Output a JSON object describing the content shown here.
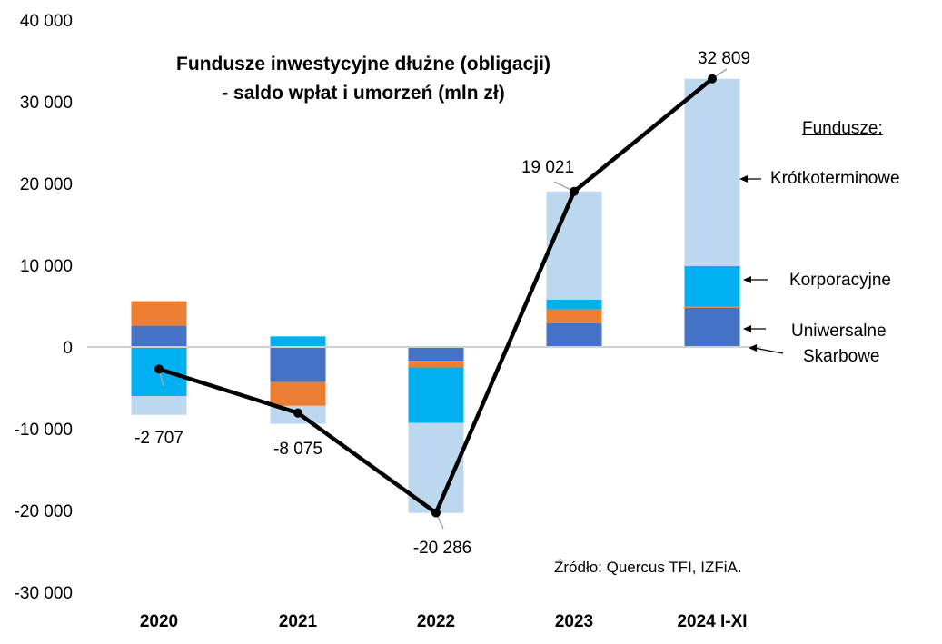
{
  "chart_data": {
    "type": "bar",
    "subtype": "stacked bar with line",
    "title": "Fundusze inwestycyjne dłużne (obligacji)",
    "subtitle": "- saldo wpłat i umorzeń (mln zł)",
    "categories": [
      "2020",
      "2021",
      "2022",
      "2023",
      "2024 I-XI"
    ],
    "ylim": [
      -30000,
      40000
    ],
    "yticks": [
      40000,
      30000,
      20000,
      10000,
      0,
      -10000,
      -20000,
      -30000
    ],
    "ytick_labels": [
      "40 000",
      "30 000",
      "20 000",
      "10 000",
      "0",
      "-10 000",
      "-20 000",
      "-30 000"
    ],
    "legend_title": "Fundusze:",
    "series": [
      {
        "name": "Uniwersalne",
        "color": "#4472C4",
        "values": [
          2600,
          -4300,
          -1700,
          2900,
          4800
        ]
      },
      {
        "name": "Skarbowe",
        "color": "#ED7D31",
        "values": [
          3000,
          -2900,
          -800,
          1700,
          100
        ]
      },
      {
        "name": "Korporacyjne",
        "color": "#00B0F0",
        "values": [
          -6000,
          1300,
          -6800,
          1200,
          5000
        ]
      },
      {
        "name": "Krótkoterminowe",
        "color": "#BDD7EE",
        "values": [
          -2300,
          -2200,
          -11000,
          13221,
          22909
        ]
      }
    ],
    "total": {
      "name": "Suma",
      "color": "#000000",
      "values": [
        -2707,
        -8075,
        -20286,
        19021,
        32809
      ],
      "labels": [
        "-2 707",
        "-8 075",
        "-20 286",
        "19 021",
        "32 809"
      ]
    },
    "legend_labels": [
      "Krótkoterminowe",
      "Korporacyjne",
      "Uniwersalne",
      "Skarbowe"
    ],
    "source": "Źródło: Quercus TFI, IZFiA.",
    "grid": false
  }
}
